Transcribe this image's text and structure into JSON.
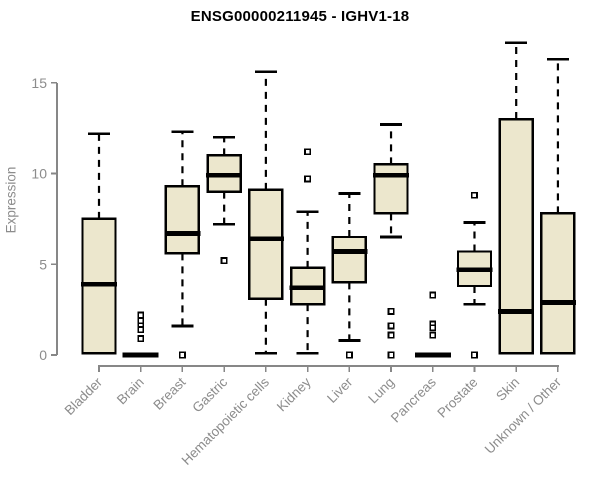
{
  "title": "ENSG00000211945 - IGHV1-18",
  "colors": {
    "box_fill": "#ece7cd",
    "box_stroke": "#000000",
    "median": "#000000",
    "whisker": "#000000",
    "outlier_stroke": "#000000",
    "axis": "#878787",
    "axis_text": "#8c8c8c",
    "title_text": "#000000",
    "background": "#ffffff"
  },
  "chart_data": {
    "type": "boxplot",
    "title": "ENSG00000211945 - IGHV1-18",
    "xlabel": "",
    "ylabel": "Expression",
    "ylim": [
      0,
      17.5
    ],
    "yticks": [
      0,
      5,
      10,
      15
    ],
    "ytick_labels": [
      "0",
      "5",
      "10",
      "15"
    ],
    "grid": false,
    "legend": null,
    "categories": [
      "Bladder",
      "Brain",
      "Breast",
      "Gastric",
      "Hematopoietic cells",
      "Kidney",
      "Liver",
      "Lung",
      "Pancreas",
      "Prostate",
      "Skin",
      "Unknown / Other"
    ],
    "series": [
      {
        "name": "Bladder",
        "low": 0.1,
        "q1": 0.1,
        "median": 3.9,
        "q3": 7.5,
        "high": 12.2,
        "outliers": []
      },
      {
        "name": "Brain",
        "low": 0,
        "q1": 0,
        "median": 0,
        "q3": 0,
        "high": 0,
        "outliers": [
          2.2,
          1.9,
          1.6,
          1.4,
          0.9
        ]
      },
      {
        "name": "Breast",
        "low": 1.6,
        "q1": 5.6,
        "median": 6.7,
        "q3": 9.3,
        "high": 12.3,
        "outliers": [
          0
        ]
      },
      {
        "name": "Gastric",
        "low": 7.2,
        "q1": 9.0,
        "median": 9.9,
        "q3": 11.0,
        "high": 12.0,
        "outliers": [
          5.2
        ]
      },
      {
        "name": "Hematopoietic cells",
        "low": 0.1,
        "q1": 3.1,
        "median": 6.4,
        "q3": 9.1,
        "high": 15.6,
        "outliers": []
      },
      {
        "name": "Kidney",
        "low": 0.1,
        "q1": 2.8,
        "median": 3.7,
        "q3": 4.8,
        "high": 7.9,
        "outliers": [
          11.2,
          9.7
        ]
      },
      {
        "name": "Liver",
        "low": 0.8,
        "q1": 4.0,
        "median": 5.7,
        "q3": 6.5,
        "high": 8.9,
        "outliers": [
          0
        ]
      },
      {
        "name": "Lung",
        "low": 6.5,
        "q1": 7.8,
        "median": 9.9,
        "q3": 10.5,
        "high": 12.7,
        "outliers": [
          2.4,
          1.6,
          1.1,
          0
        ]
      },
      {
        "name": "Pancreas",
        "low": 0,
        "q1": 0,
        "median": 0,
        "q3": 0,
        "high": 0,
        "outliers": [
          3.3,
          1.7,
          1.5,
          1.1
        ]
      },
      {
        "name": "Prostate",
        "low": 2.8,
        "q1": 3.8,
        "median": 4.7,
        "q3": 5.7,
        "high": 7.3,
        "outliers": [
          8.8,
          0
        ]
      },
      {
        "name": "Skin",
        "low": 0.1,
        "q1": 0.1,
        "median": 2.4,
        "q3": 13.0,
        "high": 17.2,
        "outliers": []
      },
      {
        "name": "Unknown / Other",
        "low": 0.1,
        "q1": 0.1,
        "median": 2.9,
        "q3": 7.8,
        "high": 16.3,
        "outliers": []
      }
    ]
  }
}
